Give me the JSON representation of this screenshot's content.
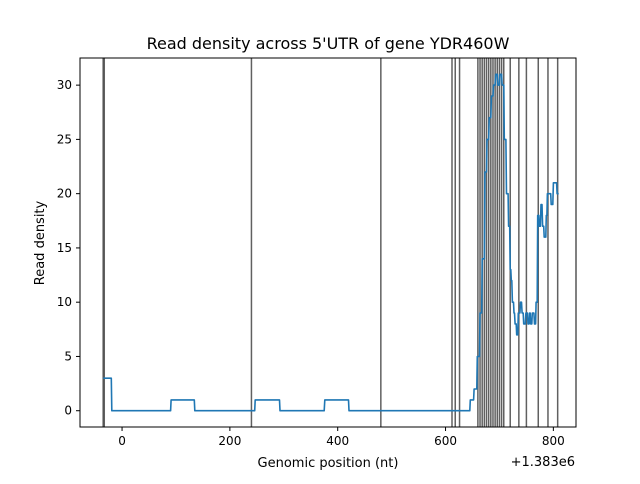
{
  "chart_data": {
    "type": "line",
    "title": "Read density across 5'UTR of gene YDR460W",
    "xlabel": "Genomic position (nt)",
    "ylabel": "Read density",
    "x_offset_label": "+1.383e6",
    "xlim": [
      -78,
      842
    ],
    "ylim": [
      -1.5,
      32.5
    ],
    "x_ticks": [
      0,
      200,
      400,
      600,
      800
    ],
    "x_tick_labels": [
      "0",
      "200",
      "400",
      "600",
      "800"
    ],
    "y_ticks": [
      0,
      5,
      10,
      15,
      20,
      25,
      30
    ],
    "y_tick_labels": [
      "0",
      "5",
      "10",
      "15",
      "20",
      "25",
      "30"
    ],
    "grid": false,
    "colors": {
      "line": "#1f77b4",
      "vlines": "#444444",
      "axes": "#000000"
    },
    "vertical_lines": [
      -35,
      -33,
      240,
      480,
      612,
      618,
      626,
      660,
      664,
      668,
      672,
      676,
      680,
      684,
      688,
      692,
      696,
      700,
      704,
      708,
      720,
      736,
      750,
      772,
      790,
      808
    ],
    "series": [
      {
        "x": [
          -35,
          -20,
          -19,
          90,
          91,
          134,
          135,
          246,
          247,
          292,
          293,
          375,
          376,
          420,
          421,
          645,
          646,
          652,
          653,
          658,
          659,
          663,
          664,
          667,
          668,
          672,
          673,
          676,
          677,
          680,
          681,
          684,
          685,
          688,
          689,
          692,
          693,
          696,
          697,
          700,
          701,
          704,
          705,
          708,
          709,
          712,
          713,
          716,
          717,
          719,
          720,
          721,
          722,
          723,
          724,
          726,
          727,
          728,
          729,
          731,
          732,
          734,
          735,
          738,
          739,
          741,
          742,
          744,
          745,
          748,
          749,
          752,
          753,
          755,
          756,
          757,
          758,
          760,
          761,
          764,
          765,
          767,
          768,
          770,
          771,
          773,
          774,
          776,
          777,
          779,
          780,
          782,
          783,
          786,
          787,
          788,
          789,
          791,
          792,
          795,
          796,
          799,
          800,
          802,
          803,
          806,
          807,
          810
        ],
        "values": [
          3,
          3,
          0,
          0,
          1,
          1,
          0,
          0,
          1,
          1,
          0,
          0,
          1,
          1,
          0,
          0,
          1,
          1,
          2,
          2,
          5,
          5,
          9,
          9,
          14,
          14,
          22,
          22,
          25,
          25,
          27,
          27,
          29,
          29,
          30,
          30,
          31,
          31,
          30,
          30,
          31,
          31,
          30,
          30,
          25,
          25,
          20,
          20,
          17,
          17,
          13,
          13,
          12,
          12,
          10,
          10,
          9,
          9,
          8,
          8,
          7,
          7,
          9,
          9,
          10,
          10,
          9,
          9,
          8,
          8,
          9,
          9,
          8,
          8,
          9,
          9,
          8,
          8,
          9,
          9,
          8,
          8,
          10,
          10,
          18,
          18,
          17,
          17,
          19,
          19,
          17,
          17,
          16,
          16,
          18,
          18,
          20,
          20,
          20,
          20,
          19,
          19,
          21,
          21,
          21,
          21,
          20,
          20
        ]
      }
    ]
  }
}
